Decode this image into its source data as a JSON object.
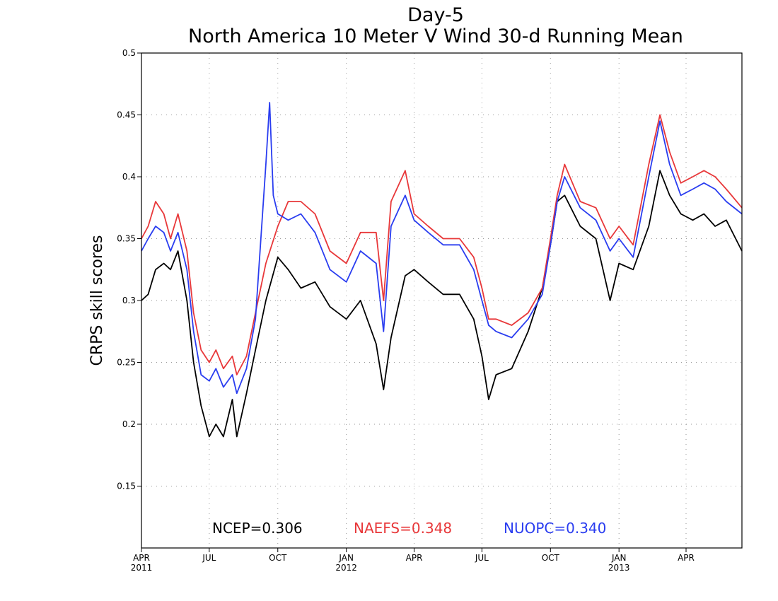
{
  "chart_data": {
    "type": "line",
    "title": "Day-5",
    "subtitle": "North America 10 Meter V Wind 30-d Running Mean",
    "ylabel": "CRPS skill scores",
    "xlabel": "",
    "ylim": [
      0.1,
      0.5
    ],
    "yticks": [
      0.15,
      0.2,
      0.25,
      0.3,
      0.35,
      0.4,
      0.45,
      0.5
    ],
    "x_start": "2011-04-01",
    "x_end": "2013-06-15",
    "x_ticks": [
      {
        "date": "2011-04-01",
        "label": "APR",
        "year": "2011"
      },
      {
        "date": "2011-07-01",
        "label": "JUL",
        "year": ""
      },
      {
        "date": "2011-10-01",
        "label": "OCT",
        "year": ""
      },
      {
        "date": "2012-01-01",
        "label": "JAN",
        "year": "2012"
      },
      {
        "date": "2012-04-01",
        "label": "APR",
        "year": ""
      },
      {
        "date": "2012-07-01",
        "label": "JUL",
        "year": ""
      },
      {
        "date": "2012-10-01",
        "label": "OCT",
        "year": ""
      },
      {
        "date": "2013-01-01",
        "label": "JAN",
        "year": "2013"
      },
      {
        "date": "2013-04-01",
        "label": "APR",
        "year": ""
      }
    ],
    "grid": true,
    "annotations": [
      {
        "text": "NCEP=0.306",
        "color": "#000000"
      },
      {
        "text": "NAEFS=0.348",
        "color": "#e8383a"
      },
      {
        "text": "NUOPC=0.340",
        "color": "#2a3df0"
      }
    ],
    "series": [
      {
        "color": "#000000",
        "points": [
          [
            "2011-04-01",
            0.3
          ],
          [
            "2011-04-10",
            0.305
          ],
          [
            "2011-04-20",
            0.325
          ],
          [
            "2011-05-01",
            0.33
          ],
          [
            "2011-05-10",
            0.325
          ],
          [
            "2011-05-20",
            0.34
          ],
          [
            "2011-06-01",
            0.3
          ],
          [
            "2011-06-10",
            0.25
          ],
          [
            "2011-06-20",
            0.215
          ],
          [
            "2011-07-01",
            0.19
          ],
          [
            "2011-07-10",
            0.2
          ],
          [
            "2011-07-20",
            0.19
          ],
          [
            "2011-08-01",
            0.22
          ],
          [
            "2011-08-07",
            0.19
          ],
          [
            "2011-08-20",
            0.225
          ],
          [
            "2011-09-01",
            0.26
          ],
          [
            "2011-09-15",
            0.3
          ],
          [
            "2011-10-01",
            0.335
          ],
          [
            "2011-10-15",
            0.325
          ],
          [
            "2011-11-01",
            0.31
          ],
          [
            "2011-11-20",
            0.315
          ],
          [
            "2011-12-10",
            0.295
          ],
          [
            "2012-01-01",
            0.285
          ],
          [
            "2012-01-20",
            0.3
          ],
          [
            "2012-02-10",
            0.265
          ],
          [
            "2012-02-20",
            0.228
          ],
          [
            "2012-03-01",
            0.27
          ],
          [
            "2012-03-20",
            0.32
          ],
          [
            "2012-04-01",
            0.325
          ],
          [
            "2012-04-20",
            0.315
          ],
          [
            "2012-05-10",
            0.305
          ],
          [
            "2012-06-01",
            0.305
          ],
          [
            "2012-06-20",
            0.285
          ],
          [
            "2012-07-01",
            0.255
          ],
          [
            "2012-07-10",
            0.22
          ],
          [
            "2012-07-20",
            0.24
          ],
          [
            "2012-08-10",
            0.245
          ],
          [
            "2012-09-01",
            0.275
          ],
          [
            "2012-09-20",
            0.31
          ],
          [
            "2012-10-01",
            0.345
          ],
          [
            "2012-10-10",
            0.38
          ],
          [
            "2012-10-20",
            0.385
          ],
          [
            "2012-11-10",
            0.36
          ],
          [
            "2012-12-01",
            0.35
          ],
          [
            "2012-12-20",
            0.3
          ],
          [
            "2013-01-01",
            0.33
          ],
          [
            "2013-01-20",
            0.325
          ],
          [
            "2013-02-10",
            0.36
          ],
          [
            "2013-02-25",
            0.405
          ],
          [
            "2013-03-10",
            0.385
          ],
          [
            "2013-03-25",
            0.37
          ],
          [
            "2013-04-10",
            0.365
          ],
          [
            "2013-04-25",
            0.37
          ],
          [
            "2013-05-10",
            0.36
          ],
          [
            "2013-05-25",
            0.365
          ],
          [
            "2013-06-15",
            0.34
          ]
        ]
      },
      {
        "color": "#e8383a",
        "points": [
          [
            "2011-04-01",
            0.35
          ],
          [
            "2011-04-10",
            0.36
          ],
          [
            "2011-04-20",
            0.38
          ],
          [
            "2011-05-01",
            0.37
          ],
          [
            "2011-05-10",
            0.35
          ],
          [
            "2011-05-20",
            0.37
          ],
          [
            "2011-06-01",
            0.34
          ],
          [
            "2011-06-10",
            0.29
          ],
          [
            "2011-06-20",
            0.26
          ],
          [
            "2011-07-01",
            0.25
          ],
          [
            "2011-07-10",
            0.26
          ],
          [
            "2011-07-20",
            0.245
          ],
          [
            "2011-08-01",
            0.255
          ],
          [
            "2011-08-07",
            0.24
          ],
          [
            "2011-08-20",
            0.255
          ],
          [
            "2011-09-01",
            0.29
          ],
          [
            "2011-09-15",
            0.33
          ],
          [
            "2011-10-01",
            0.36
          ],
          [
            "2011-10-15",
            0.38
          ],
          [
            "2011-11-01",
            0.38
          ],
          [
            "2011-11-20",
            0.37
          ],
          [
            "2011-12-10",
            0.34
          ],
          [
            "2012-01-01",
            0.33
          ],
          [
            "2012-01-20",
            0.355
          ],
          [
            "2012-02-10",
            0.355
          ],
          [
            "2012-02-20",
            0.3
          ],
          [
            "2012-03-01",
            0.38
          ],
          [
            "2012-03-20",
            0.405
          ],
          [
            "2012-04-01",
            0.37
          ],
          [
            "2012-04-20",
            0.36
          ],
          [
            "2012-05-10",
            0.35
          ],
          [
            "2012-06-01",
            0.35
          ],
          [
            "2012-06-20",
            0.335
          ],
          [
            "2012-07-01",
            0.31
          ],
          [
            "2012-07-10",
            0.285
          ],
          [
            "2012-07-20",
            0.285
          ],
          [
            "2012-08-10",
            0.28
          ],
          [
            "2012-09-01",
            0.29
          ],
          [
            "2012-09-20",
            0.31
          ],
          [
            "2012-10-01",
            0.35
          ],
          [
            "2012-10-10",
            0.385
          ],
          [
            "2012-10-20",
            0.41
          ],
          [
            "2012-11-10",
            0.38
          ],
          [
            "2012-12-01",
            0.375
          ],
          [
            "2012-12-20",
            0.35
          ],
          [
            "2013-01-01",
            0.36
          ],
          [
            "2013-01-20",
            0.345
          ],
          [
            "2013-02-10",
            0.41
          ],
          [
            "2013-02-25",
            0.45
          ],
          [
            "2013-03-10",
            0.42
          ],
          [
            "2013-03-25",
            0.395
          ],
          [
            "2013-04-10",
            0.4
          ],
          [
            "2013-04-25",
            0.405
          ],
          [
            "2013-05-10",
            0.4
          ],
          [
            "2013-05-25",
            0.39
          ],
          [
            "2013-06-15",
            0.375
          ]
        ]
      },
      {
        "color": "#2a3df0",
        "points": [
          [
            "2011-04-01",
            0.34
          ],
          [
            "2011-04-10",
            0.35
          ],
          [
            "2011-04-20",
            0.36
          ],
          [
            "2011-05-01",
            0.355
          ],
          [
            "2011-05-10",
            0.34
          ],
          [
            "2011-05-20",
            0.355
          ],
          [
            "2011-06-01",
            0.325
          ],
          [
            "2011-06-10",
            0.275
          ],
          [
            "2011-06-20",
            0.24
          ],
          [
            "2011-07-01",
            0.235
          ],
          [
            "2011-07-10",
            0.245
          ],
          [
            "2011-07-20",
            0.23
          ],
          [
            "2011-08-01",
            0.24
          ],
          [
            "2011-08-07",
            0.225
          ],
          [
            "2011-08-20",
            0.245
          ],
          [
            "2011-09-01",
            0.285
          ],
          [
            "2011-09-15",
            0.41
          ],
          [
            "2011-09-20",
            0.46
          ],
          [
            "2011-09-25",
            0.385
          ],
          [
            "2011-10-01",
            0.37
          ],
          [
            "2011-10-15",
            0.365
          ],
          [
            "2011-11-01",
            0.37
          ],
          [
            "2011-11-20",
            0.355
          ],
          [
            "2011-12-10",
            0.325
          ],
          [
            "2012-01-01",
            0.315
          ],
          [
            "2012-01-20",
            0.34
          ],
          [
            "2012-02-10",
            0.33
          ],
          [
            "2012-02-20",
            0.275
          ],
          [
            "2012-03-01",
            0.36
          ],
          [
            "2012-03-20",
            0.385
          ],
          [
            "2012-04-01",
            0.365
          ],
          [
            "2012-04-20",
            0.355
          ],
          [
            "2012-05-10",
            0.345
          ],
          [
            "2012-06-01",
            0.345
          ],
          [
            "2012-06-20",
            0.325
          ],
          [
            "2012-07-01",
            0.3
          ],
          [
            "2012-07-10",
            0.28
          ],
          [
            "2012-07-20",
            0.275
          ],
          [
            "2012-08-10",
            0.27
          ],
          [
            "2012-09-01",
            0.285
          ],
          [
            "2012-09-20",
            0.305
          ],
          [
            "2012-10-01",
            0.345
          ],
          [
            "2012-10-10",
            0.38
          ],
          [
            "2012-10-20",
            0.4
          ],
          [
            "2012-11-10",
            0.375
          ],
          [
            "2012-12-01",
            0.365
          ],
          [
            "2012-12-20",
            0.34
          ],
          [
            "2013-01-01",
            0.35
          ],
          [
            "2013-01-20",
            0.335
          ],
          [
            "2013-02-10",
            0.4
          ],
          [
            "2013-02-25",
            0.445
          ],
          [
            "2013-03-10",
            0.41
          ],
          [
            "2013-03-25",
            0.385
          ],
          [
            "2013-04-10",
            0.39
          ],
          [
            "2013-04-25",
            0.395
          ],
          [
            "2013-05-10",
            0.39
          ],
          [
            "2013-05-25",
            0.38
          ],
          [
            "2013-06-15",
            0.37
          ]
        ]
      }
    ]
  }
}
